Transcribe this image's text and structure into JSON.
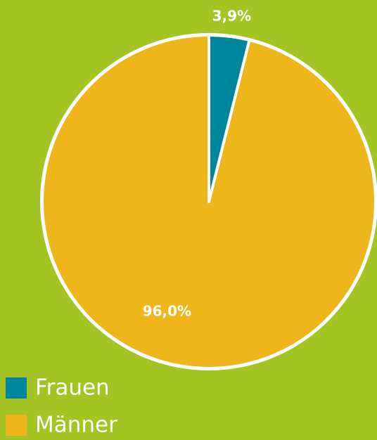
{
  "chart_data": {
    "type": "pie",
    "categories": [
      "Frauen",
      "Männer"
    ],
    "values": [
      3.9,
      96.0
    ],
    "value_labels": [
      "3,9%",
      "96,0%"
    ],
    "colors": [
      "#00859f",
      "#eeb61a"
    ],
    "legend": "bottom-left"
  }
}
